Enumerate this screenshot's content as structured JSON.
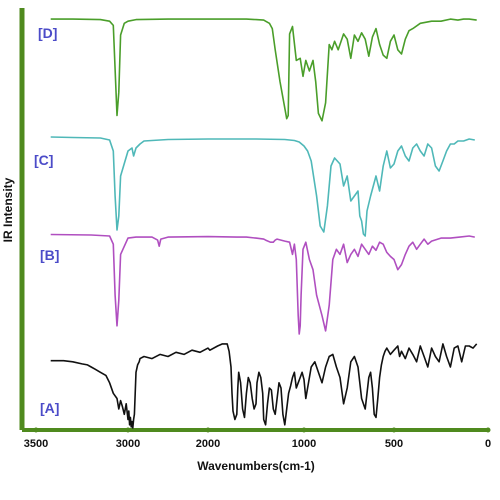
{
  "chart_data": {
    "type": "line",
    "xlabel": "Wavenumbers(cm-1)",
    "ylabel": "IR Intensity",
    "x_ticks": [
      "3500",
      "3000",
      "2000",
      "1000",
      "500",
      "0"
    ],
    "x_tick_values": [
      3500,
      3000,
      2000,
      1000,
      500,
      0
    ],
    "xlim": [
      3500,
      0
    ],
    "x_reversed": true,
    "grid": false,
    "legend": "none",
    "colors": {
      "axis": "#4f8a1e",
      "label": "#4b4bc8",
      "A": "#111111",
      "B": "#b04fc0",
      "C": "#4fb8b8",
      "D": "#4a9e2a"
    },
    "series": [
      {
        "label": "[D]",
        "color": "#4a9e2a",
        "x": [
          3420,
          3300,
          3150,
          3100,
          3080,
          3060,
          3050,
          3040,
          3020,
          3000,
          2900,
          2500,
          2000,
          1600,
          1500,
          1420,
          1400,
          1360,
          1330,
          1300,
          1250,
          1200,
          1180,
          1165,
          1150,
          1120,
          1080,
          1040,
          1010,
          990,
          970,
          950,
          935,
          920,
          900,
          880,
          860,
          845,
          830,
          810,
          780,
          760,
          740,
          720,
          700,
          680,
          660,
          640,
          620,
          600,
          580,
          560,
          540,
          520,
          500,
          480,
          460,
          440,
          420,
          400,
          360,
          300,
          250,
          200,
          160,
          130,
          100,
          60
        ],
        "y": [
          0.99,
          0.99,
          0.985,
          0.97,
          0.93,
          0.08,
          0.3,
          0.84,
          0.95,
          0.97,
          0.985,
          0.99,
          0.99,
          0.99,
          0.985,
          0.98,
          0.97,
          0.95,
          0.9,
          0.7,
          0.4,
          0.15,
          0.05,
          0.08,
          0.85,
          0.92,
          0.6,
          0.62,
          0.45,
          0.6,
          0.5,
          0.6,
          0.4,
          0.1,
          0.03,
          0.2,
          0.75,
          0.7,
          0.78,
          0.7,
          0.85,
          0.8,
          0.62,
          0.84,
          0.78,
          0.86,
          0.8,
          0.64,
          0.82,
          0.9,
          0.75,
          0.65,
          0.62,
          0.78,
          0.84,
          0.7,
          0.66,
          0.8,
          0.88,
          0.9,
          0.95,
          0.97,
          0.97,
          0.99,
          0.98,
          0.99,
          0.99,
          0.98
        ]
      },
      {
        "label": "[C]",
        "color": "#4fb8b8",
        "x": [
          3420,
          3300,
          3150,
          3100,
          3080,
          3070,
          3060,
          3050,
          3040,
          3000,
          2950,
          2930,
          2900,
          2850,
          2800,
          2500,
          2000,
          1500,
          1200,
          1100,
          1050,
          1000,
          980,
          960,
          930,
          910,
          890,
          870,
          850,
          830,
          800,
          780,
          760,
          740,
          720,
          700,
          690,
          680,
          670,
          660,
          650,
          630,
          600,
          580,
          560,
          540,
          520,
          500,
          480,
          460,
          440,
          420,
          400,
          380,
          360,
          340,
          320,
          300,
          280,
          260,
          240,
          220,
          200,
          180,
          160,
          130,
          100,
          70
        ],
        "y": [
          0.99,
          0.985,
          0.98,
          0.96,
          0.85,
          0.4,
          0.06,
          0.2,
          0.6,
          0.85,
          0.88,
          0.8,
          0.88,
          0.92,
          0.95,
          0.965,
          0.97,
          0.97,
          0.965,
          0.955,
          0.94,
          0.9,
          0.85,
          0.75,
          0.4,
          0.1,
          0.04,
          0.3,
          0.7,
          0.78,
          0.72,
          0.5,
          0.6,
          0.35,
          0.4,
          0.45,
          0.2,
          0.15,
          0.02,
          0.0,
          0.25,
          0.4,
          0.6,
          0.45,
          0.7,
          0.85,
          0.68,
          0.72,
          0.85,
          0.9,
          0.8,
          0.75,
          0.88,
          0.92,
          0.85,
          0.8,
          0.92,
          0.88,
          0.7,
          0.65,
          0.75,
          0.85,
          0.92,
          0.92,
          0.95,
          0.95,
          0.97,
          0.96
        ]
      },
      {
        "label": "[B]",
        "color": "#b04fc0",
        "x": [
          3420,
          3200,
          3100,
          3080,
          3070,
          3060,
          3050,
          3040,
          3000,
          2900,
          2700,
          2630,
          2610,
          2590,
          2500,
          2000,
          1700,
          1600,
          1500,
          1420,
          1400,
          1350,
          1320,
          1300,
          1280,
          1200,
          1150,
          1120,
          1100,
          1080,
          1060,
          1050,
          1040,
          1030,
          1010,
          990,
          970,
          950,
          930,
          900,
          880,
          860,
          840,
          820,
          800,
          780,
          760,
          740,
          720,
          700,
          680,
          660,
          640,
          620,
          600,
          580,
          560,
          540,
          520,
          500,
          480,
          460,
          440,
          420,
          400,
          380,
          360,
          340,
          320,
          300,
          250,
          200,
          150,
          100,
          70
        ],
        "y": [
          0.995,
          0.99,
          0.98,
          0.9,
          0.4,
          0.1,
          0.35,
          0.8,
          0.96,
          0.97,
          0.97,
          0.94,
          0.88,
          0.95,
          0.97,
          0.975,
          0.97,
          0.97,
          0.96,
          0.95,
          0.94,
          0.92,
          0.92,
          0.94,
          0.95,
          0.93,
          0.92,
          0.8,
          0.9,
          0.75,
          0.2,
          0.02,
          0.1,
          0.4,
          0.85,
          0.92,
          0.75,
          0.65,
          0.4,
          0.2,
          0.05,
          0.3,
          0.75,
          0.85,
          0.8,
          0.9,
          0.72,
          0.8,
          0.85,
          0.78,
          0.9,
          0.85,
          0.8,
          0.88,
          0.84,
          0.92,
          0.9,
          0.82,
          0.78,
          0.75,
          0.65,
          0.7,
          0.8,
          0.88,
          0.92,
          0.85,
          0.9,
          0.95,
          0.9,
          0.93,
          0.96,
          0.96,
          0.97,
          0.98,
          0.97
        ]
      },
      {
        "label": "[A]",
        "color": "#111111",
        "x": [
          3420,
          3350,
          3300,
          3250,
          3220,
          3200,
          3180,
          3150,
          3120,
          3100,
          3080,
          3060,
          3050,
          3040,
          3030,
          3020,
          3010,
          3000,
          2990,
          2980,
          2970,
          2960,
          2950,
          2940,
          2930,
          2920,
          2910,
          2900,
          2880,
          2860,
          2850,
          2800,
          2700,
          2600,
          2500,
          2400,
          2300,
          2200,
          2100,
          2000,
          1980,
          1900,
          1850,
          1800,
          1780,
          1760,
          1750,
          1740,
          1720,
          1700,
          1690,
          1680,
          1660,
          1640,
          1620,
          1600,
          1580,
          1560,
          1540,
          1520,
          1500,
          1490,
          1470,
          1450,
          1430,
          1420,
          1400,
          1380,
          1360,
          1340,
          1320,
          1300,
          1280,
          1260,
          1240,
          1220,
          1200,
          1180,
          1160,
          1140,
          1120,
          1100,
          1080,
          1060,
          1040,
          1020,
          1000,
          990,
          980,
          960,
          940,
          920,
          900,
          880,
          860,
          840,
          820,
          800,
          780,
          760,
          740,
          720,
          700,
          690,
          680,
          660,
          640,
          630,
          620,
          610,
          600,
          590,
          580,
          570,
          560,
          550,
          540,
          520,
          500,
          480,
          470,
          460,
          440,
          420,
          400,
          380,
          360,
          340,
          320,
          300,
          280,
          260,
          240,
          220,
          200,
          180,
          160,
          140,
          120,
          100,
          80,
          60
        ],
        "y": [
          0.66,
          0.66,
          0.65,
          0.63,
          0.62,
          0.6,
          0.58,
          0.55,
          0.52,
          0.45,
          0.35,
          0.3,
          0.2,
          0.28,
          0.22,
          0.15,
          0.25,
          0.1,
          0.18,
          0.05,
          0.12,
          0.03,
          0.08,
          0.02,
          0.1,
          0.15,
          0.35,
          0.55,
          0.62,
          0.65,
          0.68,
          0.7,
          0.68,
          0.72,
          0.7,
          0.74,
          0.72,
          0.76,
          0.74,
          0.78,
          0.76,
          0.8,
          0.82,
          0.82,
          0.75,
          0.6,
          0.35,
          0.18,
          0.1,
          0.15,
          0.4,
          0.55,
          0.45,
          0.2,
          0.12,
          0.35,
          0.5,
          0.45,
          0.3,
          0.2,
          0.25,
          0.45,
          0.55,
          0.5,
          0.35,
          0.1,
          0.05,
          0.25,
          0.4,
          0.38,
          0.2,
          0.15,
          0.3,
          0.45,
          0.4,
          0.15,
          0.05,
          0.2,
          0.35,
          0.42,
          0.5,
          0.55,
          0.4,
          0.45,
          0.5,
          0.55,
          0.48,
          0.3,
          0.4,
          0.6,
          0.65,
          0.55,
          0.45,
          0.6,
          0.7,
          0.72,
          0.6,
          0.5,
          0.25,
          0.4,
          0.65,
          0.7,
          0.6,
          0.45,
          0.3,
          0.2,
          0.5,
          0.55,
          0.4,
          0.15,
          0.12,
          0.3,
          0.5,
          0.62,
          0.7,
          0.75,
          0.78,
          0.72,
          0.76,
          0.8,
          0.7,
          0.75,
          0.68,
          0.78,
          0.72,
          0.65,
          0.8,
          0.7,
          0.6,
          0.78,
          0.7,
          0.65,
          0.82,
          0.7,
          0.6,
          0.78,
          0.8,
          0.65,
          0.8,
          0.8,
          0.78,
          0.82
        ]
      }
    ]
  }
}
